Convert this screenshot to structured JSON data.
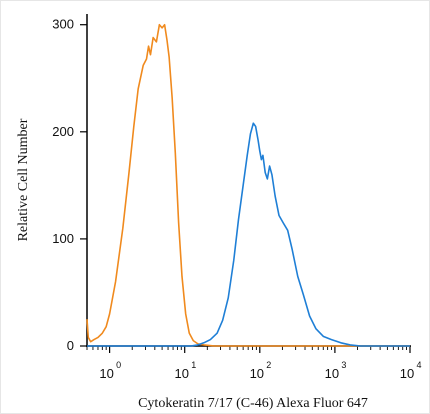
{
  "chart_data": {
    "type": "line",
    "xscale": "log",
    "xlabel": "Cytokeratin 7/17 (C-46) Alexa Fluor 647",
    "ylabel": "Relative Cell Number",
    "xlim": [
      0.5,
      10000
    ],
    "ylim": [
      0,
      310
    ],
    "x_ticks": [
      {
        "base": "10",
        "exp": "0",
        "value": 1
      },
      {
        "base": "10",
        "exp": "1",
        "value": 10
      },
      {
        "base": "10",
        "exp": "2",
        "value": 100
      },
      {
        "base": "10",
        "exp": "3",
        "value": 1000
      },
      {
        "base": "10",
        "exp": "4",
        "value": 10000
      }
    ],
    "y_ticks": [
      "0",
      "100",
      "200",
      "300"
    ],
    "y_tick_values": [
      0,
      100,
      200,
      300
    ],
    "series": [
      {
        "color": "#f08a1e",
        "points": [
          [
            0.5,
            25
          ],
          [
            0.52,
            8
          ],
          [
            0.56,
            4
          ],
          [
            0.62,
            6
          ],
          [
            0.7,
            8
          ],
          [
            0.8,
            12
          ],
          [
            0.9,
            18
          ],
          [
            1.0,
            30
          ],
          [
            1.2,
            60
          ],
          [
            1.5,
            110
          ],
          [
            1.8,
            160
          ],
          [
            2.1,
            205
          ],
          [
            2.4,
            240
          ],
          [
            2.8,
            262
          ],
          [
            3.1,
            268
          ],
          [
            3.3,
            280
          ],
          [
            3.5,
            272
          ],
          [
            3.8,
            288
          ],
          [
            4.2,
            284
          ],
          [
            4.6,
            300
          ],
          [
            5.0,
            297
          ],
          [
            5.4,
            300
          ],
          [
            5.8,
            286
          ],
          [
            6.2,
            270
          ],
          [
            6.8,
            232
          ],
          [
            7.5,
            180
          ],
          [
            8.3,
            115
          ],
          [
            9.2,
            65
          ],
          [
            10.3,
            30
          ],
          [
            11.5,
            12
          ],
          [
            13,
            5
          ],
          [
            15,
            2
          ],
          [
            18,
            1
          ],
          [
            25,
            0
          ],
          [
            100,
            0
          ],
          [
            1000,
            0
          ],
          [
            10000,
            0
          ]
        ]
      },
      {
        "color": "#1f7fd6",
        "points": [
          [
            0.5,
            0
          ],
          [
            5,
            0
          ],
          [
            12,
            0
          ],
          [
            15,
            1
          ],
          [
            18,
            3
          ],
          [
            22,
            6
          ],
          [
            27,
            12
          ],
          [
            32,
            24
          ],
          [
            38,
            45
          ],
          [
            45,
            80
          ],
          [
            52,
            118
          ],
          [
            60,
            150
          ],
          [
            68,
            178
          ],
          [
            75,
            198
          ],
          [
            82,
            208
          ],
          [
            88,
            205
          ],
          [
            95,
            192
          ],
          [
            100,
            182
          ],
          [
            105,
            174
          ],
          [
            110,
            178
          ],
          [
            118,
            162
          ],
          [
            126,
            156
          ],
          [
            135,
            168
          ],
          [
            145,
            160
          ],
          [
            160,
            140
          ],
          [
            180,
            122
          ],
          [
            205,
            115
          ],
          [
            235,
            108
          ],
          [
            270,
            90
          ],
          [
            320,
            65
          ],
          [
            380,
            48
          ],
          [
            460,
            28
          ],
          [
            560,
            16
          ],
          [
            700,
            9
          ],
          [
            900,
            6
          ],
          [
            1200,
            3
          ],
          [
            1600,
            1
          ],
          [
            2200,
            0
          ],
          [
            10000,
            0
          ]
        ]
      }
    ]
  }
}
